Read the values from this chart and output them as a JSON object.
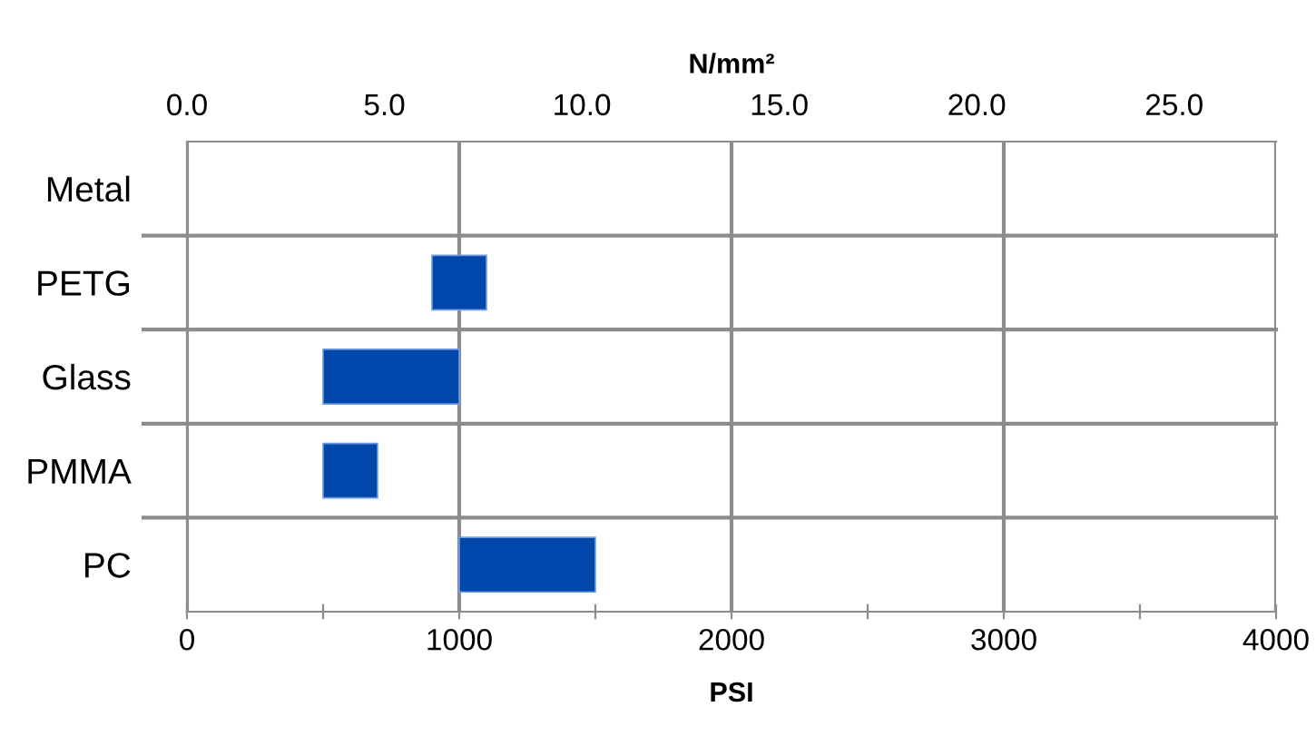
{
  "chart_data": {
    "type": "bar",
    "orientation": "horizontal",
    "categories": [
      "Metal",
      "PETG",
      "Glass",
      "PMMA",
      "PC"
    ],
    "base": [
      null,
      900,
      500,
      500,
      1000
    ],
    "values": [
      null,
      200,
      500,
      200,
      500
    ],
    "color": "#0047ab",
    "xlabel": "PSI",
    "x2label": "N/mm²",
    "xlim": [
      0,
      4000
    ],
    "xticks": [
      0,
      {
        "value": 500,
        "label": null
      },
      1000,
      {
        "value": 1500,
        "label": null
      },
      2000,
      {
        "value": 2500,
        "label": null
      },
      3000,
      {
        "value": 3500,
        "label": null
      },
      4000
    ],
    "x2lim": [
      0,
      27.58
    ],
    "x2ticks": [
      {
        "value": 0,
        "label": "0.0"
      },
      {
        "value": 5,
        "label": "5.0"
      },
      {
        "value": 10,
        "label": "10.0"
      },
      {
        "value": 15,
        "label": "15.0"
      },
      {
        "value": 20,
        "label": "20.0"
      },
      {
        "value": 25,
        "label": "25.0"
      }
    ],
    "grid": true
  }
}
